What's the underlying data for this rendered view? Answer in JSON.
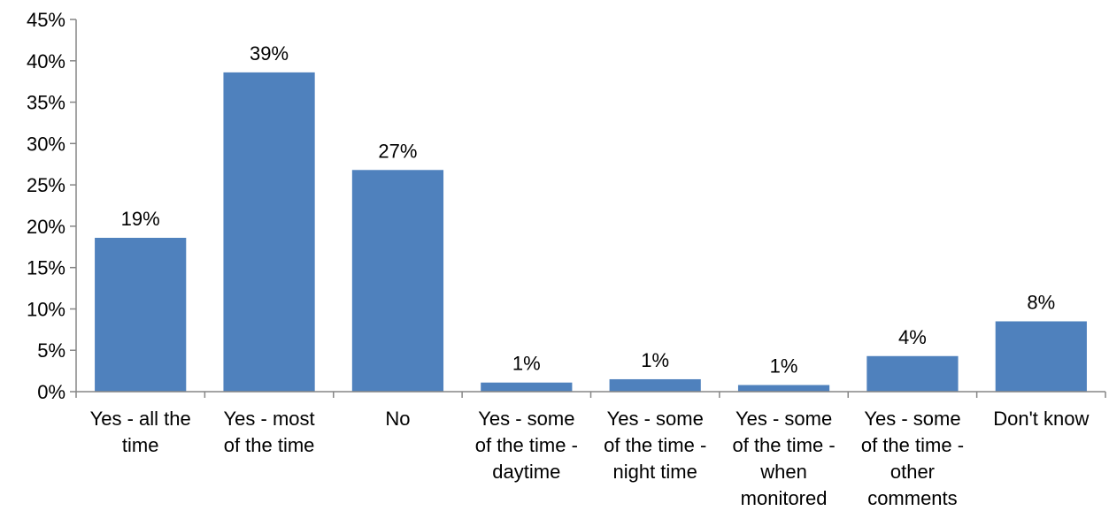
{
  "chart_data": {
    "type": "bar",
    "title": "",
    "xlabel": "",
    "ylabel": "",
    "categories": [
      "Yes - all the time",
      "Yes - most of the time",
      "No",
      "Yes - some of the time - daytime",
      "Yes - some of the time - night time",
      "Yes - some of the time - when monitored",
      "Yes - some of the time - other comments",
      "Don't know"
    ],
    "category_label_lines": [
      [
        "Yes - all the",
        "time"
      ],
      [
        "Yes - most",
        "of the time"
      ],
      [
        "No"
      ],
      [
        "Yes - some",
        "of the time -",
        "daytime"
      ],
      [
        "Yes - some",
        "of the time -",
        "night time"
      ],
      [
        "Yes - some",
        "of the time -",
        "when",
        "monitored"
      ],
      [
        "Yes - some",
        "of the time -",
        "other",
        "comments"
      ],
      [
        "Don't know"
      ]
    ],
    "values": [
      18.6,
      38.6,
      26.8,
      1.1,
      1.5,
      0.8,
      4.3,
      8.5
    ],
    "data_labels": [
      "19%",
      "39%",
      "27%",
      "1%",
      "1%",
      "1%",
      "4%",
      "8%"
    ],
    "ylim": [
      0,
      45
    ],
    "yticks": [
      0,
      5,
      10,
      15,
      20,
      25,
      30,
      35,
      40,
      45
    ],
    "ytick_labels": [
      "0%",
      "5%",
      "10%",
      "15%",
      "20%",
      "25%",
      "30%",
      "35%",
      "40%",
      "45%"
    ],
    "grid": false,
    "legend": "none",
    "colors": {
      "bar": "#4F81BD",
      "axis": "#868686",
      "text": "#000000"
    }
  }
}
